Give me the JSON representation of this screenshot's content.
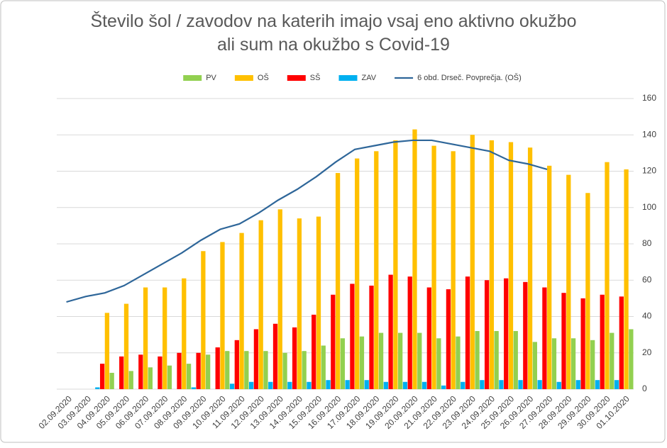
{
  "chart_data": {
    "type": "bar",
    "title": [
      "Število šol / zavodov na katerih imajo vsaj eno aktivno okužbo",
      "ali sum na okužbo s Covid-19"
    ],
    "categories": [
      "02.09.2020",
      "03.09.2020",
      "04.09.2020",
      "05.09.2020",
      "06.09.2020",
      "07.09.2020",
      "08.09.2020",
      "09.09.2020",
      "10.09.2020",
      "11.09.2020",
      "12.09.2020",
      "13.09.2020",
      "14.09.2020",
      "15.09.2020",
      "16.09.2020",
      "17.09.2020",
      "18.09.2020",
      "19.09.2020",
      "20.09.2020",
      "21.09.2020",
      "22.09.2020",
      "23.09.2020",
      "24.09.2020",
      "25.09.2020",
      "26.09.2020",
      "27.09.2020",
      "28.09.2020",
      "29.09.2020",
      "30.09.2020",
      "01.10.2020"
    ],
    "series": [
      {
        "name": "PV",
        "type": "bar",
        "color": "#92d050",
        "values": [
          null,
          null,
          9,
          10,
          12,
          13,
          14,
          19,
          21,
          21,
          21,
          20,
          21,
          24,
          28,
          29,
          31,
          31,
          31,
          28,
          29,
          32,
          32,
          32,
          26,
          28,
          28,
          27,
          31,
          33
        ]
      },
      {
        "name": "OŠ",
        "type": "bar",
        "color": "#ffc000",
        "values": [
          null,
          null,
          42,
          47,
          56,
          56,
          61,
          76,
          81,
          86,
          93,
          99,
          94,
          95,
          119,
          127,
          131,
          137,
          143,
          134,
          131,
          140,
          137,
          136,
          133,
          123,
          118,
          108,
          125,
          121
        ]
      },
      {
        "name": "SŠ",
        "type": "bar",
        "color": "#ff0000",
        "values": [
          null,
          null,
          14,
          18,
          19,
          18,
          20,
          20,
          23,
          27,
          33,
          36,
          34,
          41,
          52,
          58,
          57,
          63,
          62,
          56,
          55,
          62,
          60,
          61,
          59,
          56,
          53,
          50,
          52,
          51
        ]
      },
      {
        "name": "ZAV",
        "type": "bar",
        "color": "#00b0f0",
        "values": [
          null,
          null,
          1,
          0,
          0,
          0,
          0,
          1,
          0,
          3,
          4,
          4,
          4,
          4,
          5,
          5,
          5,
          4,
          4,
          4,
          2,
          4,
          5,
          5,
          5,
          5,
          4,
          5,
          5,
          5
        ]
      },
      {
        "name": "6 obd. Drseč. Povprečja. (OŠ)",
        "type": "line",
        "color": "#2e6699",
        "values": [
          48,
          51,
          53,
          57,
          63,
          69,
          75,
          82,
          88,
          91,
          97,
          104,
          110,
          117,
          125,
          132,
          134,
          136,
          137,
          137,
          135,
          133,
          131,
          126,
          124,
          121,
          null,
          null,
          null,
          null
        ]
      }
    ],
    "ylim": [
      0,
      160
    ],
    "yticks": [
      0,
      20,
      40,
      60,
      80,
      100,
      120,
      140,
      160
    ],
    "grid": true
  }
}
